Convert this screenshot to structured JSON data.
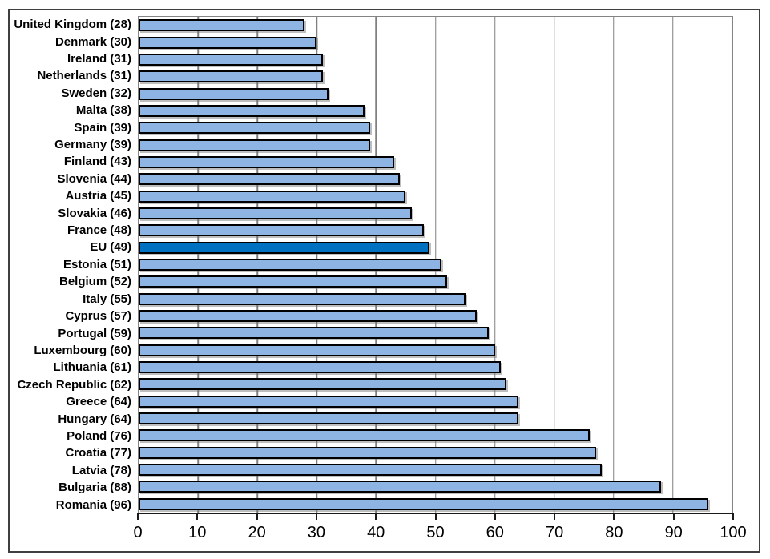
{
  "chart_data": {
    "type": "bar",
    "orientation": "horizontal",
    "title": "",
    "xlabel": "",
    "ylabel": "",
    "xlim": [
      0,
      100
    ],
    "x_ticks": [
      0,
      10,
      20,
      30,
      40,
      50,
      60,
      70,
      80,
      90,
      100
    ],
    "grid": true,
    "legend": false,
    "category_label_format": "{category} ({value})",
    "categories": [
      "United Kingdom",
      "Denmark",
      "Ireland",
      "Netherlands",
      "Sweden",
      "Malta",
      "Spain",
      "Germany",
      "Finland",
      "Slovenia",
      "Austria",
      "Slovakia",
      "France",
      "EU",
      "Estonia",
      "Belgium",
      "Italy",
      "Cyprus",
      "Portugal",
      "Luxembourg",
      "Lithuania",
      "Czech Republic",
      "Greece",
      "Hungary",
      "Poland",
      "Croatia",
      "Latvia",
      "Bulgaria",
      "Romania"
    ],
    "values": [
      28,
      30,
      31,
      31,
      32,
      38,
      39,
      39,
      43,
      44,
      45,
      46,
      48,
      49,
      51,
      52,
      55,
      57,
      59,
      60,
      61,
      62,
      64,
      64,
      76,
      77,
      78,
      88,
      96
    ],
    "highlight_category": "EU",
    "colors": {
      "bar_fill": "#8DB4E2",
      "bar_border": "#000000",
      "highlight_fill": "#0070C0",
      "gridline": "#808080",
      "plot_border": "#848484",
      "axis_line": "#1a1a1a",
      "frame_border": "#3f3f3f",
      "text": "#000000",
      "background": "#FFFFFF"
    }
  }
}
